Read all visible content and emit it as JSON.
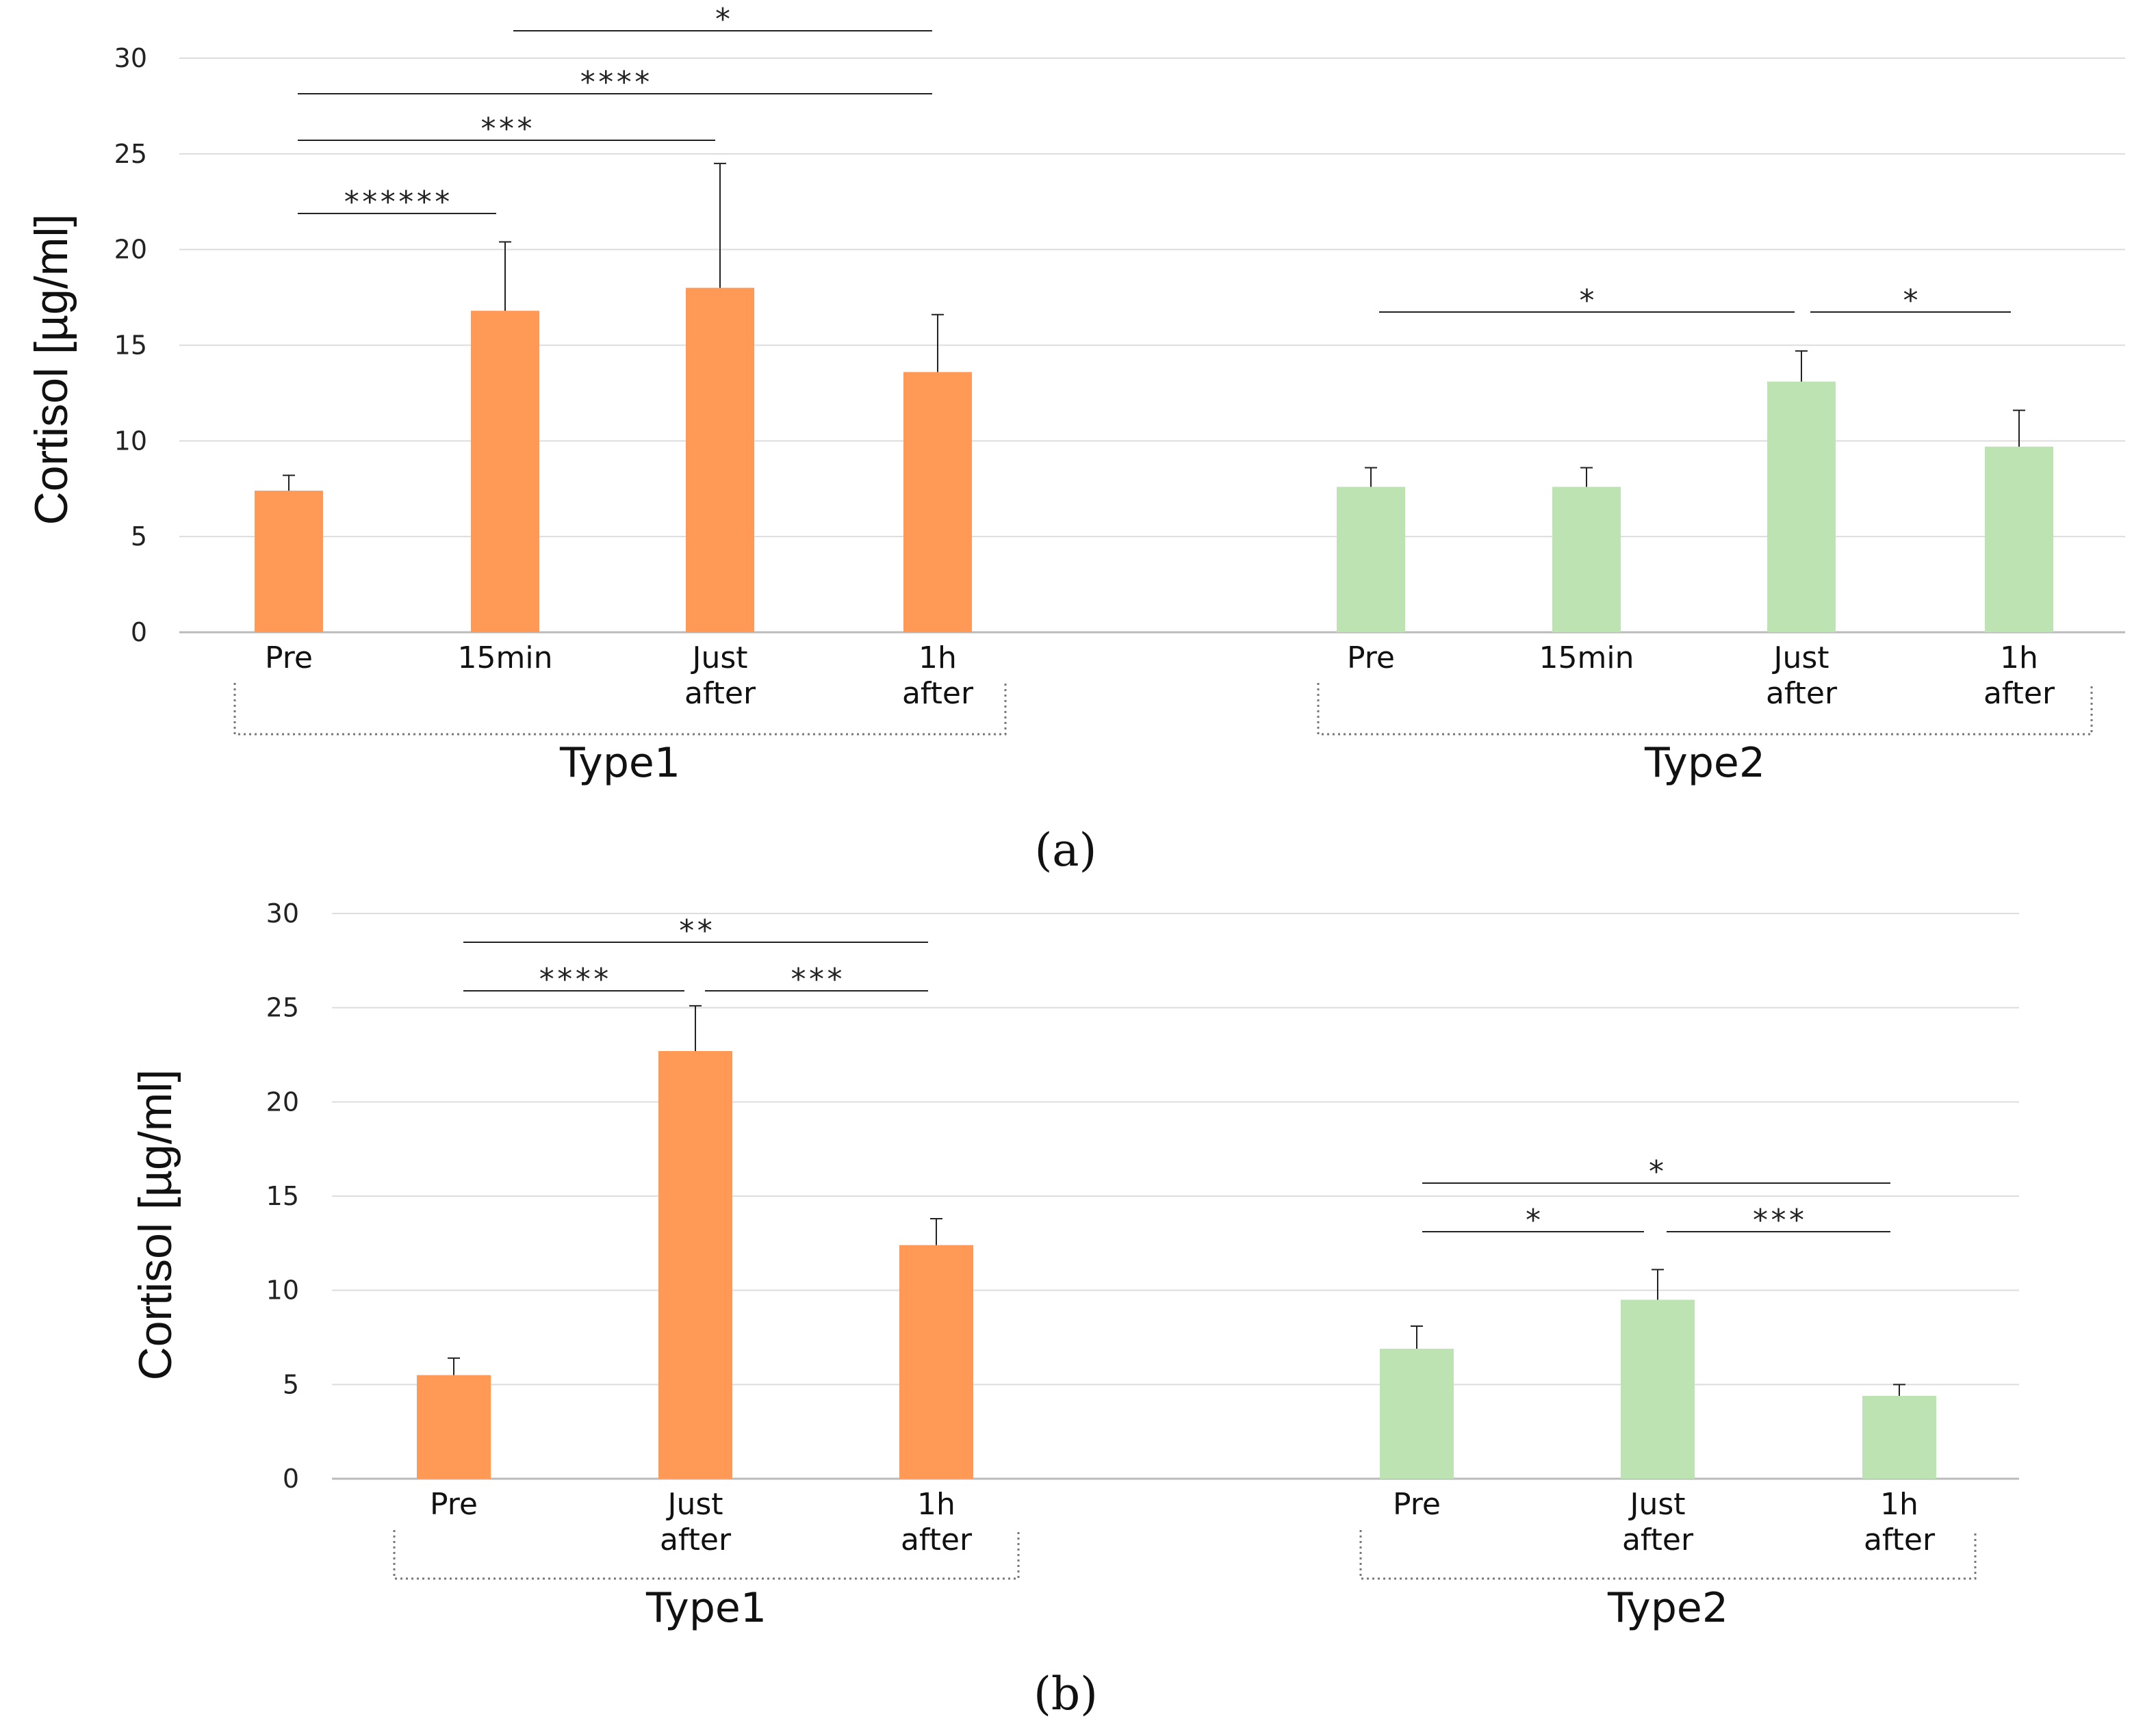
{
  "colors": {
    "type1": "#ff9955",
    "type2": "#bde3b3",
    "grid": "#dddddd",
    "axis": "#bbbbbb",
    "ink": "#222222"
  },
  "chart_data": [
    {
      "type": "bar",
      "panel_label": "(a)",
      "ylabel": "Cortisol [µg/ml]",
      "ylim": [
        0,
        30
      ],
      "yticks": [
        0,
        5,
        10,
        15,
        20,
        25,
        30
      ],
      "groups": [
        {
          "name": "Type1",
          "series_color": "type1",
          "categories": [
            [
              "Pre"
            ],
            [
              "15min"
            ],
            [
              "Just",
              "after"
            ],
            [
              "1h",
              "after"
            ]
          ],
          "values": [
            7.4,
            16.8,
            18.0,
            13.6
          ],
          "errors": [
            0.8,
            3.6,
            6.5,
            3.0
          ],
          "significance": [
            {
              "from": 0,
              "to": 1,
              "stars": "******"
            },
            {
              "from": 0,
              "to": 2,
              "stars": "***"
            },
            {
              "from": 0,
              "to": 3,
              "stars": "****"
            },
            {
              "from": 1,
              "to": 3,
              "stars": "*"
            }
          ]
        },
        {
          "name": "Type2",
          "series_color": "type2",
          "categories": [
            [
              "Pre"
            ],
            [
              "15min"
            ],
            [
              "Just",
              "after"
            ],
            [
              "1h",
              "after"
            ]
          ],
          "values": [
            7.6,
            7.6,
            13.1,
            9.7
          ],
          "errors": [
            1.0,
            1.0,
            1.6,
            1.9
          ],
          "significance": [
            {
              "from": 0,
              "to": 2,
              "stars": "*"
            },
            {
              "from": 2,
              "to": 3,
              "stars": "*"
            }
          ]
        }
      ]
    },
    {
      "type": "bar",
      "panel_label": "(b)",
      "ylabel": "Cortisol [µg/ml]",
      "ylim": [
        0,
        30
      ],
      "yticks": [
        0,
        5,
        10,
        15,
        20,
        25,
        30
      ],
      "groups": [
        {
          "name": "Type1",
          "series_color": "type1",
          "categories": [
            [
              "Pre"
            ],
            [
              "Just",
              "after"
            ],
            [
              "1h",
              "after"
            ]
          ],
          "values": [
            5.5,
            22.7,
            12.4
          ],
          "errors": [
            0.9,
            2.4,
            1.4
          ],
          "significance": [
            {
              "from": 0,
              "to": 1,
              "stars": "****"
            },
            {
              "from": 1,
              "to": 2,
              "stars": "***"
            },
            {
              "from": 0,
              "to": 2,
              "stars": "**"
            }
          ]
        },
        {
          "name": "Type2",
          "series_color": "type2",
          "categories": [
            [
              "Pre"
            ],
            [
              "Just",
              "after"
            ],
            [
              "1h",
              "after"
            ]
          ],
          "values": [
            6.9,
            9.5,
            4.4
          ],
          "errors": [
            1.2,
            1.6,
            0.6
          ],
          "significance": [
            {
              "from": 0,
              "to": 1,
              "stars": "*"
            },
            {
              "from": 1,
              "to": 2,
              "stars": "***"
            },
            {
              "from": 0,
              "to": 2,
              "stars": "*"
            }
          ]
        }
      ]
    }
  ]
}
